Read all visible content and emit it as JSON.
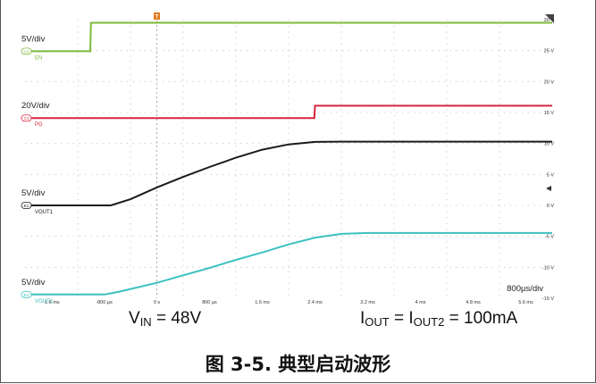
{
  "chart_data": {
    "type": "line",
    "title": "",
    "xlabel": "",
    "ylabel": "",
    "x_unit": "µs",
    "x_range": [
      -2000,
      6000
    ],
    "x_ticks": [
      {
        "value": -1600,
        "label": "-1.6 ms"
      },
      {
        "value": -800,
        "label": "-800 µs"
      },
      {
        "value": 0,
        "label": "0 s"
      },
      {
        "value": 800,
        "label": "800 µs"
      },
      {
        "value": 1600,
        "label": "1.6 ms"
      },
      {
        "value": 2400,
        "label": "2.4 ms"
      },
      {
        "value": 3200,
        "label": "3.2 ms"
      },
      {
        "value": 4000,
        "label": "4 ms"
      },
      {
        "value": 4800,
        "label": "4.8 ms"
      },
      {
        "value": 5600,
        "label": "5.6 ms"
      }
    ],
    "y_unit": "V",
    "y_range": [
      -15,
      30
    ],
    "y_ticks": [
      {
        "value": 30,
        "label": "30 V"
      },
      {
        "value": 25,
        "label": "25 V"
      },
      {
        "value": 20,
        "label": "20 V"
      },
      {
        "value": 15,
        "label": "15 V"
      },
      {
        "value": 10,
        "label": "10 V"
      },
      {
        "value": 5,
        "label": "5 V"
      },
      {
        "value": 0,
        "label": "0 V"
      },
      {
        "value": -5,
        "label": "-5 V"
      },
      {
        "value": -10,
        "label": "-10 V"
      },
      {
        "value": -15,
        "label": "-15 V"
      }
    ],
    "grid": true,
    "timebase_label": "800µs/div",
    "trigger_marker": "T",
    "series": [
      {
        "name": "EN",
        "badge": "C4",
        "scale_label": "5V/div",
        "color": "#7dba3a",
        "points": [
          [
            -2000,
            24.9
          ],
          [
            -1010,
            24.9
          ],
          [
            -1000,
            29.5
          ],
          [
            6000,
            29.5
          ]
        ]
      },
      {
        "name": "PG",
        "badge": "C1",
        "scale_label": "20V/div",
        "color": "#d7263d",
        "points": [
          [
            -2000,
            14.1
          ],
          [
            2390,
            14.1
          ],
          [
            2400,
            16.1
          ],
          [
            6000,
            16.1
          ]
        ]
      },
      {
        "name": "VOUT1",
        "badge": "E1",
        "scale_label": "5V/div",
        "color": "#1a1a1a",
        "points": [
          [
            -2000,
            0
          ],
          [
            -700,
            0
          ],
          [
            -400,
            1.0
          ],
          [
            0,
            2.9
          ],
          [
            400,
            4.6
          ],
          [
            800,
            6.2
          ],
          [
            1200,
            7.7
          ],
          [
            1600,
            9.0
          ],
          [
            2000,
            9.85
          ],
          [
            2400,
            10.25
          ],
          [
            2800,
            10.3
          ],
          [
            6000,
            10.3
          ]
        ]
      },
      {
        "name": "VOUT2",
        "badge": "E2",
        "scale_label": "5V/div",
        "color": "#3cc1c1",
        "points": [
          [
            -2000,
            -14.4
          ],
          [
            -800,
            -14.4
          ],
          [
            -600,
            -14.0
          ],
          [
            0,
            -12.5
          ],
          [
            400,
            -11.3
          ],
          [
            800,
            -10.1
          ],
          [
            1200,
            -8.8
          ],
          [
            1600,
            -7.6
          ],
          [
            2000,
            -6.3
          ],
          [
            2400,
            -5.2
          ],
          [
            2800,
            -4.6
          ],
          [
            3200,
            -4.45
          ],
          [
            6000,
            -4.45
          ]
        ]
      }
    ]
  },
  "conditions": {
    "vin": {
      "main": "V",
      "sub": "IN",
      "rest": " = 48V"
    },
    "iout": {
      "main1": "I",
      "sub1": "OUT",
      "mid": " = I",
      "sub2": "OUT2",
      "rest": " = 100mA"
    }
  },
  "caption": "图 3-5. 典型启动波形"
}
